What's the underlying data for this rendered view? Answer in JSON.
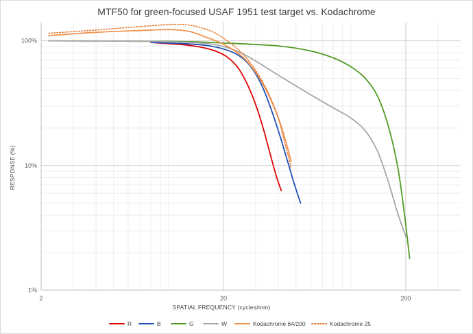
{
  "chart_data": {
    "type": "line",
    "title": "MTF50 for green-focused USAF 1951 test target vs. Kodachrome",
    "xlabel": "SPATIAL FREQUENCY (cycles/mm)",
    "ylabel": "RESPONSE (%)",
    "xscale": "log",
    "yscale": "log",
    "xlim": [
      2,
      400
    ],
    "ylim": [
      0.01,
      1.4
    ],
    "x_ticks": [
      {
        "value": 2,
        "label": "2"
      },
      {
        "value": 20,
        "label": "20"
      },
      {
        "value": 200,
        "label": "200"
      }
    ],
    "y_ticks": [
      {
        "value": 0.01,
        "label": "1%"
      },
      {
        "value": 0.1,
        "label": "10%"
      },
      {
        "value": 1,
        "label": "100%"
      }
    ],
    "grid": true,
    "legend_position": "bottom",
    "series": [
      {
        "name": "R",
        "color": "#e00000",
        "style": "solid",
        "points": [
          [
            8,
            0.97
          ],
          [
            12,
            0.93
          ],
          [
            15,
            0.89
          ],
          [
            18,
            0.83
          ],
          [
            21,
            0.74
          ],
          [
            24,
            0.61
          ],
          [
            27,
            0.45
          ],
          [
            30,
            0.31
          ],
          [
            33,
            0.2
          ],
          [
            36,
            0.125
          ],
          [
            39,
            0.082
          ],
          [
            41.5,
            0.063
          ]
        ]
      },
      {
        "name": "B",
        "color": "#1f4fb4",
        "style": "solid",
        "points": [
          [
            8,
            0.97
          ],
          [
            12,
            0.95
          ],
          [
            16,
            0.92
          ],
          [
            20,
            0.86
          ],
          [
            24,
            0.77
          ],
          [
            28,
            0.63
          ],
          [
            32,
            0.46
          ],
          [
            36,
            0.3
          ],
          [
            40,
            0.19
          ],
          [
            44,
            0.12
          ],
          [
            48,
            0.078
          ],
          [
            51,
            0.059
          ],
          [
            53,
            0.05
          ]
        ]
      },
      {
        "name": "G",
        "color": "#4f9a23",
        "style": "solid",
        "points": [
          [
            2.2,
            1.0
          ],
          [
            10,
            0.99
          ],
          [
            20,
            0.96
          ],
          [
            40,
            0.91
          ],
          [
            60,
            0.83
          ],
          [
            80,
            0.73
          ],
          [
            100,
            0.62
          ],
          [
            120,
            0.5
          ],
          [
            140,
            0.36
          ],
          [
            160,
            0.21
          ],
          [
            180,
            0.1
          ],
          [
            195,
            0.045
          ],
          [
            210,
            0.018
          ]
        ]
      },
      {
        "name": "W",
        "color": "#a6a6a6",
        "style": "solid",
        "points": [
          [
            2.2,
            1.0
          ],
          [
            8,
            0.99
          ],
          [
            15,
            0.96
          ],
          [
            20,
            0.9
          ],
          [
            25,
            0.8
          ],
          [
            30,
            0.69
          ],
          [
            40,
            0.53
          ],
          [
            60,
            0.37
          ],
          [
            80,
            0.29
          ],
          [
            100,
            0.24
          ],
          [
            120,
            0.19
          ],
          [
            140,
            0.13
          ],
          [
            160,
            0.075
          ],
          [
            180,
            0.042
          ],
          [
            195,
            0.03
          ],
          [
            200,
            0.027
          ]
        ]
      },
      {
        "name": "Kodachrome 64/200",
        "color": "#f0924f",
        "style": "solid",
        "points": [
          [
            2.2,
            1.1
          ],
          [
            4,
            1.17
          ],
          [
            7,
            1.21
          ],
          [
            10,
            1.23
          ],
          [
            13,
            1.19
          ],
          [
            16,
            1.07
          ],
          [
            20,
            0.94
          ],
          [
            25,
            0.76
          ],
          [
            30,
            0.56
          ],
          [
            35,
            0.38
          ],
          [
            40,
            0.24
          ],
          [
            44,
            0.155
          ],
          [
            47,
            0.108
          ]
        ]
      },
      {
        "name": "Kodachrome 25",
        "color": "#e37a32",
        "style": "dotted",
        "points": [
          [
            2.2,
            1.15
          ],
          [
            4,
            1.22
          ],
          [
            6,
            1.28
          ],
          [
            8,
            1.32
          ],
          [
            10,
            1.35
          ],
          [
            12,
            1.35
          ],
          [
            14,
            1.31
          ],
          [
            17,
            1.2
          ],
          [
            20,
            1.05
          ],
          [
            25,
            0.81
          ],
          [
            30,
            0.58
          ],
          [
            35,
            0.39
          ],
          [
            40,
            0.24
          ],
          [
            43,
            0.16
          ],
          [
            46,
            0.11
          ],
          [
            47,
            0.095
          ]
        ]
      }
    ]
  }
}
